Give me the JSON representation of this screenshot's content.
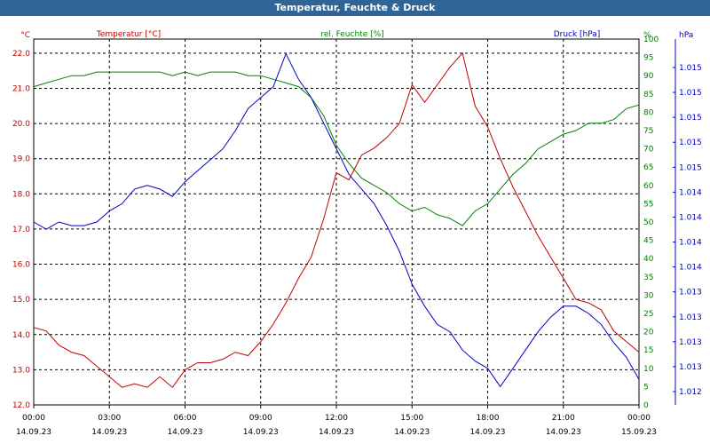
{
  "window": {
    "title": "Temperatur, Feuchte & Druck"
  },
  "chart_data": {
    "type": "line",
    "title": "Temperatur, Feuchte & Druck",
    "grid": true,
    "x_ticks": [
      {
        "time": "00:00",
        "date": "14.09.23"
      },
      {
        "time": "03:00",
        "date": "14.09.23"
      },
      {
        "time": "06:00",
        "date": "14.09.23"
      },
      {
        "time": "09:00",
        "date": "14.09.23"
      },
      {
        "time": "12:00",
        "date": "14.09.23"
      },
      {
        "time": "15:00",
        "date": "14.09.23"
      },
      {
        "time": "18:00",
        "date": "14.09.23"
      },
      {
        "time": "21:00",
        "date": "14.09.23"
      },
      {
        "time": "00:00",
        "date": "15.09.23"
      }
    ],
    "xlim": [
      "14.09.23 00:00",
      "15.09.23 00:00"
    ],
    "axes": {
      "temp": {
        "unit": "°C",
        "ylim": [
          12.0,
          22.4
        ],
        "ticks": [
          12.0,
          13.0,
          14.0,
          15.0,
          16.0,
          17.0,
          18.0,
          19.0,
          20.0,
          21.0,
          22.0
        ]
      },
      "hum": {
        "unit": "%",
        "ylim": [
          0,
          100
        ],
        "ticks": [
          0,
          5,
          10,
          15,
          20,
          25,
          30,
          35,
          40,
          45,
          50,
          55,
          60,
          65,
          70,
          75,
          80,
          85,
          90,
          95,
          100
        ]
      },
      "press": {
        "unit": "hPa",
        "ticks": [
          "1.012",
          "1.013",
          "1.013",
          "1.013",
          "1.013",
          "1.014",
          "1.014",
          "1.014",
          "1.014",
          "1.015",
          "1.015",
          "1.015",
          "1.015",
          "1.015"
        ]
      }
    },
    "series": [
      {
        "name": "Temperatur [°C]",
        "color": "#c00000",
        "axis": "temp",
        "points": [
          [
            "00:00",
            14.2
          ],
          [
            "00:30",
            14.1
          ],
          [
            "01:00",
            13.7
          ],
          [
            "01:30",
            13.5
          ],
          [
            "02:00",
            13.4
          ],
          [
            "02:30",
            13.1
          ],
          [
            "03:00",
            12.8
          ],
          [
            "03:30",
            12.5
          ],
          [
            "04:00",
            12.6
          ],
          [
            "04:30",
            12.5
          ],
          [
            "05:00",
            12.8
          ],
          [
            "05:30",
            12.5
          ],
          [
            "06:00",
            13.0
          ],
          [
            "06:30",
            13.2
          ],
          [
            "07:00",
            13.2
          ],
          [
            "07:30",
            13.3
          ],
          [
            "08:00",
            13.5
          ],
          [
            "08:30",
            13.4
          ],
          [
            "09:00",
            13.8
          ],
          [
            "09:30",
            14.3
          ],
          [
            "10:00",
            14.9
          ],
          [
            "10:30",
            15.6
          ],
          [
            "11:00",
            16.2
          ],
          [
            "11:30",
            17.3
          ],
          [
            "12:00",
            18.6
          ],
          [
            "12:30",
            18.4
          ],
          [
            "13:00",
            19.1
          ],
          [
            "13:30",
            19.3
          ],
          [
            "14:00",
            19.6
          ],
          [
            "14:30",
            20.0
          ],
          [
            "15:00",
            21.1
          ],
          [
            "15:30",
            20.6
          ],
          [
            "16:00",
            21.1
          ],
          [
            "16:30",
            21.6
          ],
          [
            "17:00",
            22.0
          ],
          [
            "17:30",
            20.5
          ],
          [
            "18:00",
            19.9
          ],
          [
            "18:30",
            19.0
          ],
          [
            "19:00",
            18.2
          ],
          [
            "19:30",
            17.5
          ],
          [
            "20:00",
            16.8
          ],
          [
            "20:30",
            16.2
          ],
          [
            "21:00",
            15.6
          ],
          [
            "21:30",
            15.0
          ],
          [
            "22:00",
            14.9
          ],
          [
            "22:30",
            14.7
          ],
          [
            "23:00",
            14.1
          ],
          [
            "23:30",
            13.8
          ],
          [
            "24:00",
            13.5
          ]
        ]
      },
      {
        "name": "rel. Feuchte [%]",
        "color": "#008000",
        "axis": "hum",
        "points": [
          [
            "00:00",
            87
          ],
          [
            "00:30",
            88
          ],
          [
            "01:00",
            89
          ],
          [
            "01:30",
            90
          ],
          [
            "02:00",
            90
          ],
          [
            "02:30",
            91
          ],
          [
            "03:00",
            91
          ],
          [
            "03:30",
            91
          ],
          [
            "04:00",
            91
          ],
          [
            "04:30",
            91
          ],
          [
            "05:00",
            91
          ],
          [
            "05:30",
            90
          ],
          [
            "06:00",
            91
          ],
          [
            "06:30",
            90
          ],
          [
            "07:00",
            91
          ],
          [
            "07:30",
            91
          ],
          [
            "08:00",
            91
          ],
          [
            "08:30",
            90
          ],
          [
            "09:00",
            90
          ],
          [
            "09:30",
            89
          ],
          [
            "10:00",
            88
          ],
          [
            "10:30",
            87
          ],
          [
            "11:00",
            84
          ],
          [
            "11:30",
            79
          ],
          [
            "12:00",
            71
          ],
          [
            "12:30",
            66
          ],
          [
            "13:00",
            62
          ],
          [
            "13:30",
            60
          ],
          [
            "14:00",
            58
          ],
          [
            "14:30",
            55
          ],
          [
            "15:00",
            53
          ],
          [
            "15:30",
            54
          ],
          [
            "16:00",
            52
          ],
          [
            "16:30",
            51
          ],
          [
            "17:00",
            49
          ],
          [
            "17:30",
            53
          ],
          [
            "18:00",
            55
          ],
          [
            "18:30",
            59
          ],
          [
            "19:00",
            63
          ],
          [
            "19:30",
            66
          ],
          [
            "20:00",
            70
          ],
          [
            "20:30",
            72
          ],
          [
            "21:00",
            74
          ],
          [
            "21:30",
            75
          ],
          [
            "22:00",
            77
          ],
          [
            "22:30",
            77
          ],
          [
            "23:00",
            78
          ],
          [
            "23:30",
            81
          ],
          [
            "24:00",
            82
          ]
        ]
      },
      {
        "name": "Druck [hPa]",
        "color": "#0000c0",
        "axis": "press",
        "points": [
          [
            "00:00",
            50
          ],
          [
            "00:30",
            48
          ],
          [
            "01:00",
            50
          ],
          [
            "01:30",
            49
          ],
          [
            "02:00",
            49
          ],
          [
            "02:30",
            50
          ],
          [
            "03:00",
            53
          ],
          [
            "03:30",
            55
          ],
          [
            "04:00",
            59
          ],
          [
            "04:30",
            60
          ],
          [
            "05:00",
            59
          ],
          [
            "05:30",
            57
          ],
          [
            "06:00",
            61
          ],
          [
            "06:30",
            64
          ],
          [
            "07:00",
            67
          ],
          [
            "07:30",
            70
          ],
          [
            "08:00",
            75
          ],
          [
            "08:30",
            81
          ],
          [
            "09:00",
            84
          ],
          [
            "09:30",
            87
          ],
          [
            "10:00",
            96
          ],
          [
            "10:30",
            89
          ],
          [
            "11:00",
            84
          ],
          [
            "11:30",
            77
          ],
          [
            "12:00",
            70
          ],
          [
            "12:30",
            63
          ],
          [
            "13:00",
            59
          ],
          [
            "13:30",
            55
          ],
          [
            "14:00",
            49
          ],
          [
            "14:30",
            42
          ],
          [
            "15:00",
            33
          ],
          [
            "15:30",
            27
          ],
          [
            "16:00",
            22
          ],
          [
            "16:30",
            20
          ],
          [
            "17:00",
            15
          ],
          [
            "17:30",
            12
          ],
          [
            "18:00",
            10
          ],
          [
            "18:30",
            5
          ],
          [
            "19:00",
            10
          ],
          [
            "19:30",
            15
          ],
          [
            "20:00",
            20
          ],
          [
            "20:30",
            24
          ],
          [
            "21:00",
            27
          ],
          [
            "21:30",
            27
          ],
          [
            "22:00",
            25
          ],
          [
            "22:30",
            22
          ],
          [
            "23:00",
            17
          ],
          [
            "23:30",
            13
          ],
          [
            "24:00",
            7
          ]
        ]
      }
    ]
  }
}
